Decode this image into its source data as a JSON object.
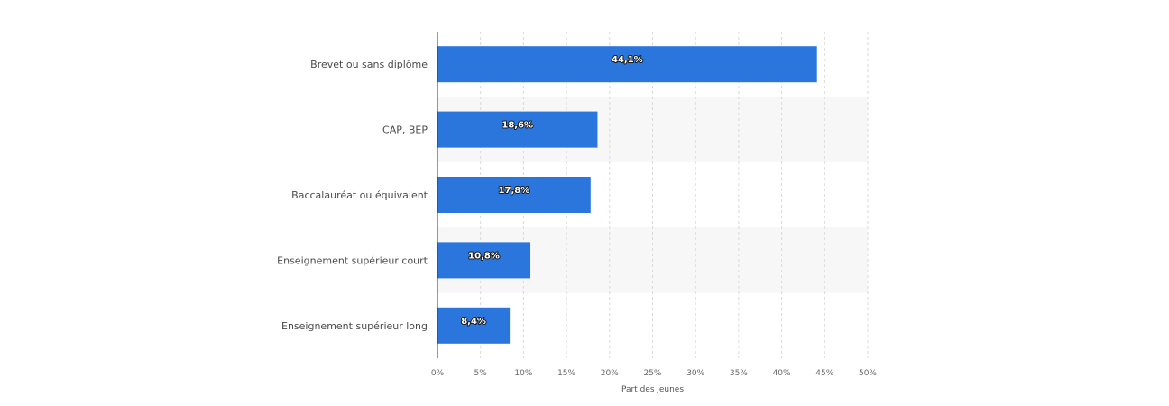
{
  "chart_data": {
    "type": "bar",
    "orientation": "horizontal",
    "categories": [
      "Brevet ou sans diplôme",
      "CAP, BEP",
      "Baccalauréat ou équivalent",
      "Enseignement supérieur court",
      "Enseignement supérieur long"
    ],
    "values": [
      44.1,
      18.6,
      17.8,
      10.8,
      8.4
    ],
    "data_labels": [
      "44,1%",
      "18,6%",
      "17,8%",
      "10,8%",
      "8,4%"
    ],
    "xlabel": "Part des jeunes",
    "ylabel": "",
    "xlim": [
      0,
      50
    ],
    "x_ticks": [
      0,
      5,
      10,
      15,
      20,
      25,
      30,
      35,
      40,
      45,
      50
    ],
    "x_tick_labels": [
      "0%",
      "5%",
      "10%",
      "15%",
      "20%",
      "25%",
      "30%",
      "35%",
      "40%",
      "45%",
      "50%"
    ],
    "grid": true,
    "legend": "none",
    "colors": {
      "bar": "#2a76dd",
      "band": "#f7f7f7",
      "grid": "#d9d9d9",
      "axis": "#333333"
    }
  }
}
